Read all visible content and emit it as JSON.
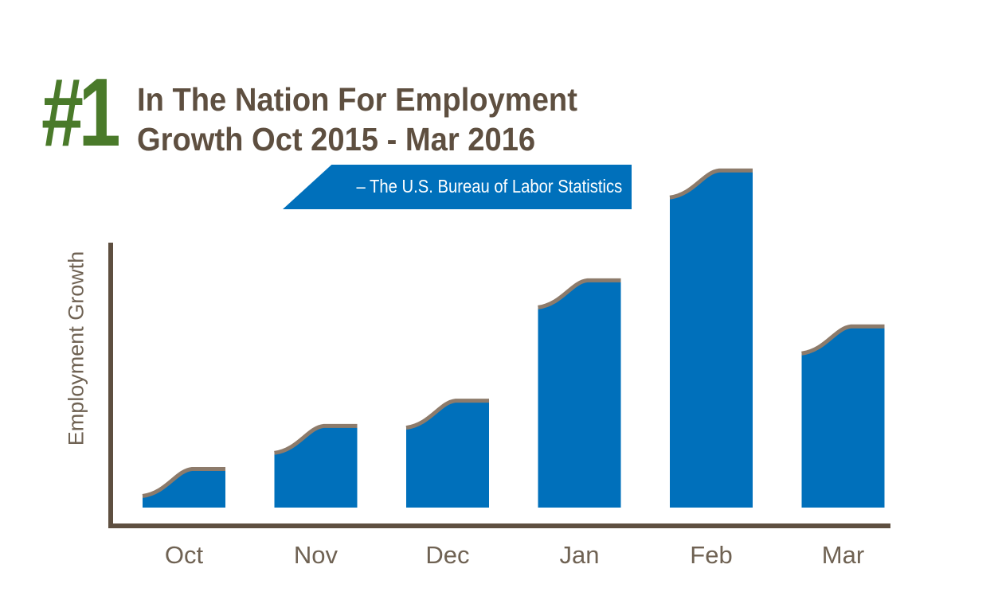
{
  "header": {
    "rank": "#1",
    "headline_line1": "In The Nation For Employment",
    "headline_line2": "Growth Oct 2015 - Mar 2016",
    "source": "– The U.S. Bureau of Labor Statistics"
  },
  "colors": {
    "rank": "#4a7a2a",
    "headline": "#5e4f40",
    "bar": "#0070bb",
    "bar_cap": "#8d7b6b",
    "axis": "#5e4f40",
    "label": "#6f6253",
    "banner": "#0070bb"
  },
  "chart_data": {
    "type": "bar",
    "categories": [
      "Oct",
      "Nov",
      "Dec",
      "Jan",
      "Feb",
      "Mar"
    ],
    "values": [
      26,
      55,
      72,
      153,
      227,
      122
    ],
    "ylabel": "Employment Growth",
    "xlabel": "",
    "ylim": [
      0,
      240
    ],
    "grid": false,
    "legend": "none"
  }
}
